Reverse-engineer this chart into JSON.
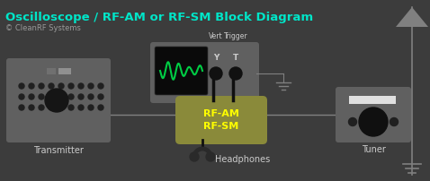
{
  "bg_color": "#3c3c3c",
  "title": "Oscilloscope / RF-AM or RF-SM Block Diagram",
  "title_color": "#00e5c8",
  "title_fontsize": 9.5,
  "copyright": "© CleanRF Systems",
  "copyright_color": "#999999",
  "copyright_fontsize": 6,
  "device_color": "#606060",
  "rfbox_color": "#8a8a3a",
  "rfbox_text_color": "#ffff00",
  "scope_screen_color": "#111111",
  "wave_color": "#00cc44",
  "line_color": "#808080",
  "wire_color": "#101010",
  "label_color": "#cccccc",
  "transmitter_label": "Transmitter",
  "tuner_label": "Tuner",
  "headphones_label": "Headphones",
  "rfam_label": "RF-AM\nRF-SM",
  "vert_label": "Vert",
  "trigger_label": "Trigger",
  "y_label": "Y",
  "t_label": "T",
  "fig_w": 4.78,
  "fig_h": 2.02,
  "dpi": 100
}
